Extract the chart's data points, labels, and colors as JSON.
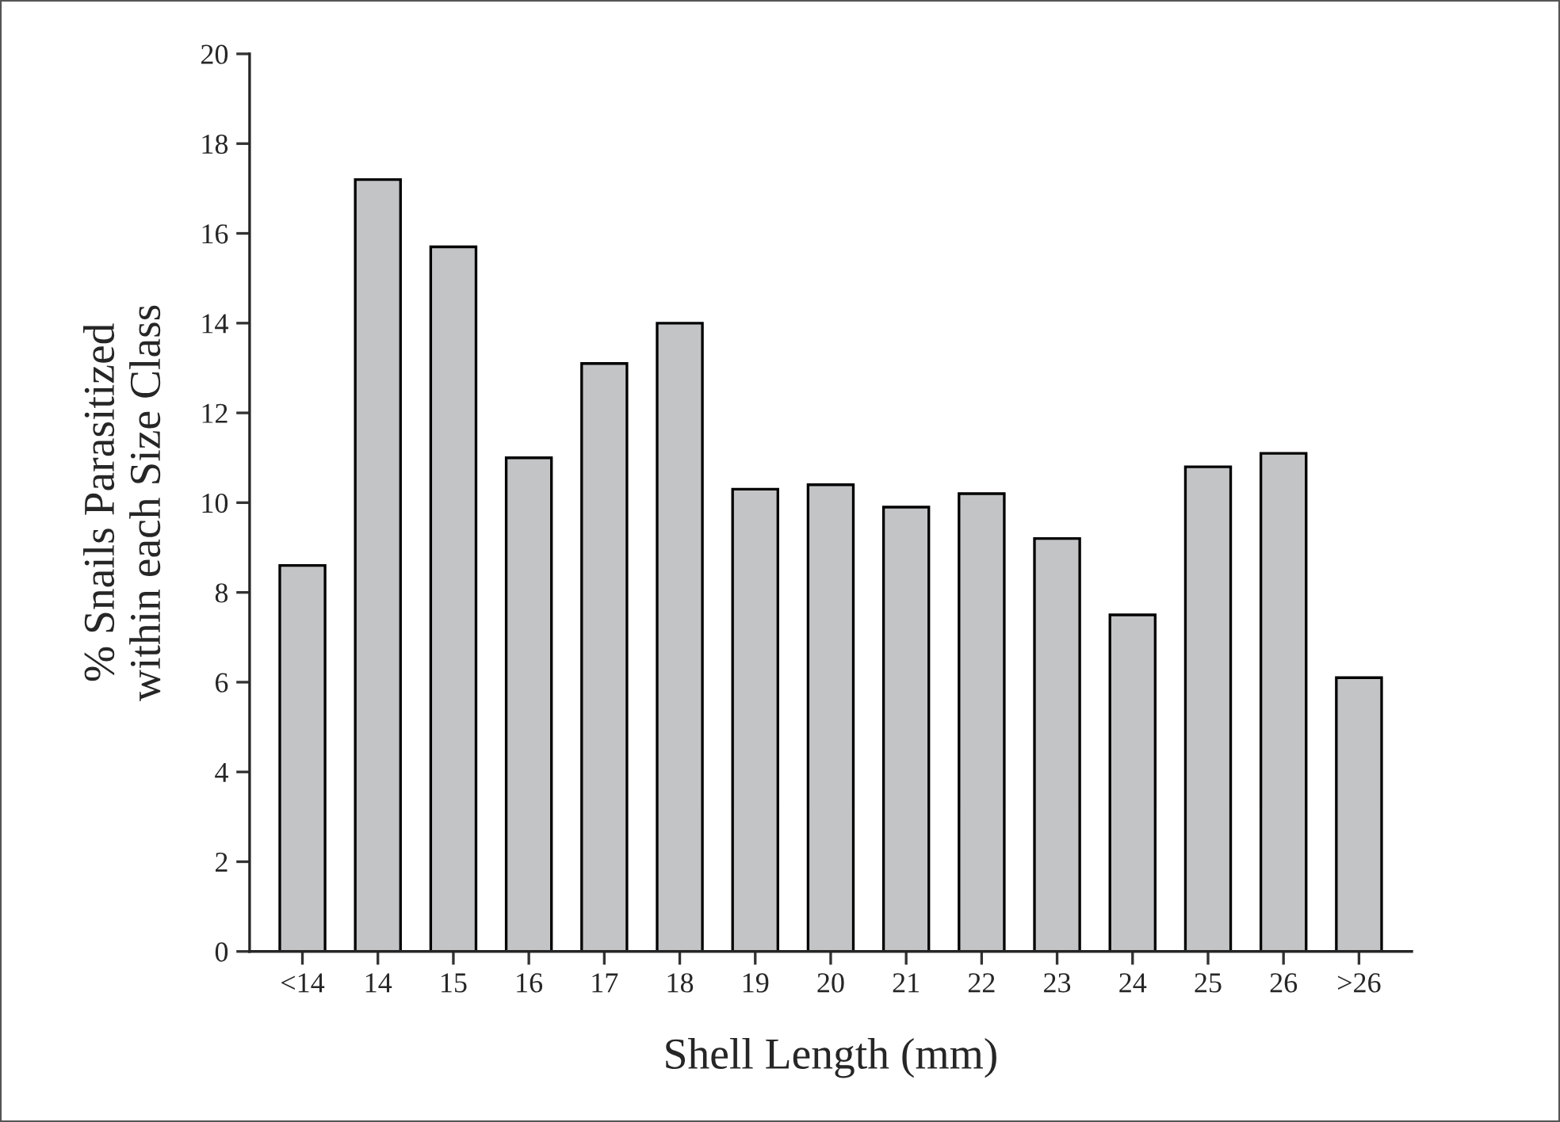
{
  "chart_data": {
    "type": "bar",
    "xlabel": "Shell Length (mm)",
    "ylabel": "% Snails Parasitized\nwithin each Size Class",
    "categories": [
      "<14",
      "14",
      "15",
      "16",
      "17",
      "18",
      "19",
      "20",
      "21",
      "22",
      "23",
      "24",
      "25",
      "26",
      ">26"
    ],
    "values": [
      8.6,
      17.2,
      15.7,
      11.0,
      13.1,
      14.0,
      10.3,
      10.4,
      9.9,
      10.2,
      9.2,
      7.5,
      10.8,
      11.1,
      6.1
    ],
    "color": "#c3c4c6",
    "ylim": [
      0,
      20
    ],
    "yticks": [
      0,
      2,
      4,
      6,
      8,
      10,
      12,
      14,
      16,
      18,
      20
    ],
    "grid": false
  }
}
